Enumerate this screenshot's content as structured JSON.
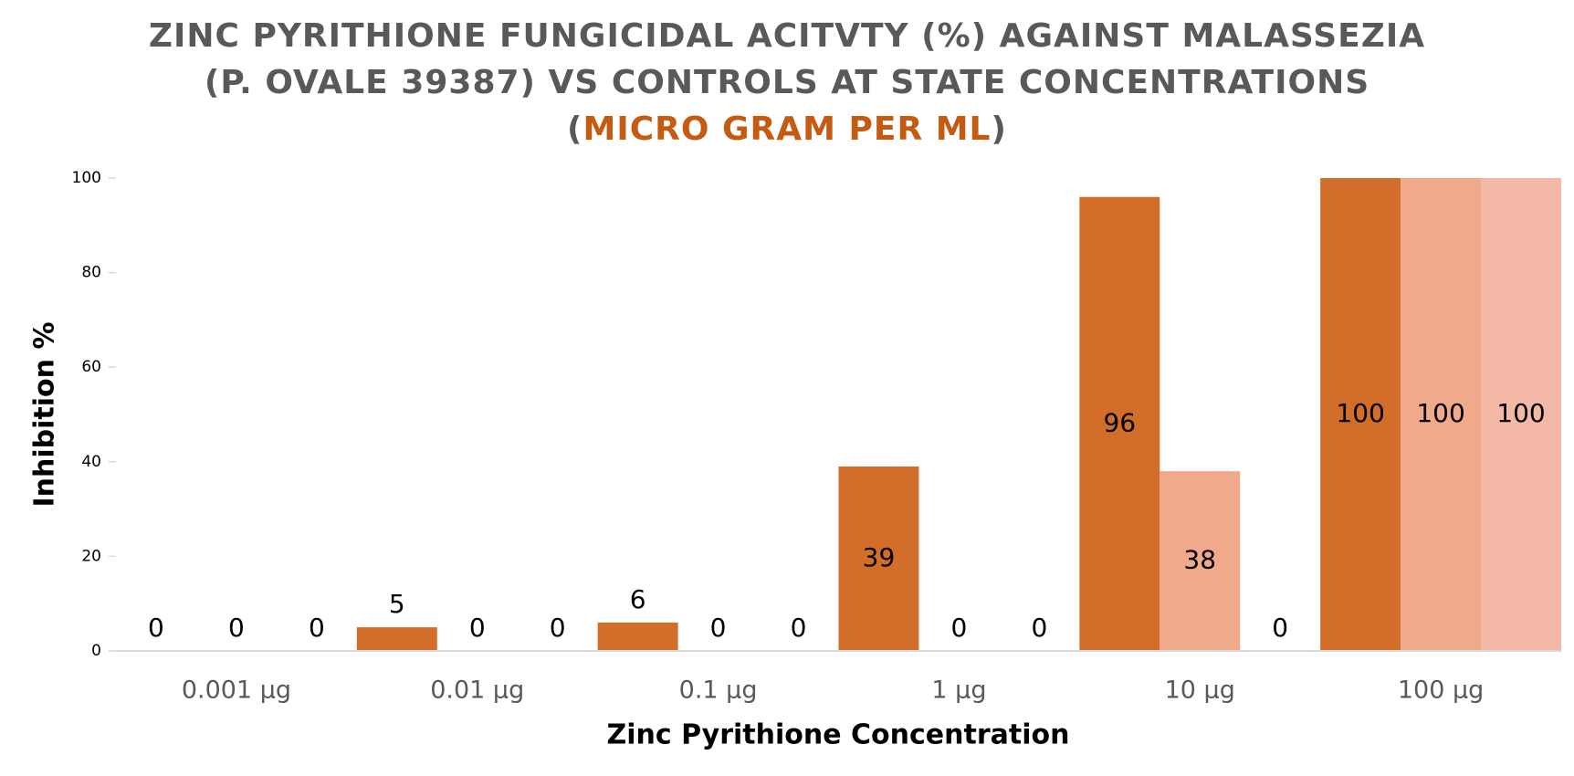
{
  "chart_data": {
    "type": "bar",
    "title": [
      "ZINC PYRITHIONE FUNGICIDAL ACITVTY (%) AGAINST MALASSEZIA (P. OVALE 39387) VS CONTROLS AT STATE CONCENTRATIONS (",
      "MICRO GRAM PER ML",
      ")"
    ],
    "title_colors": [
      "#595959",
      "#c55a11",
      "#595959"
    ],
    "x_label": "Zinc Pyrithione Concentration",
    "y_label": "Inhibition %",
    "categories": [
      "0.001 µg",
      "0.01 µg",
      "0.1 µg",
      "1 µg",
      "10 µg",
      "100 µg"
    ],
    "series": [
      {
        "color": "#d26d2a",
        "values": [
          0,
          5,
          6,
          39,
          96,
          100
        ]
      },
      {
        "color": "#f0a98a",
        "values": [
          0,
          0,
          0,
          0,
          38,
          100
        ]
      },
      {
        "color": "#f4b9a6",
        "values": [
          0,
          0,
          0,
          0,
          0,
          100
        ]
      }
    ],
    "ylim": [
      0,
      100
    ],
    "yticks": [
      0,
      20,
      40,
      60,
      80,
      100
    ],
    "grid": false,
    "legend": false
  }
}
